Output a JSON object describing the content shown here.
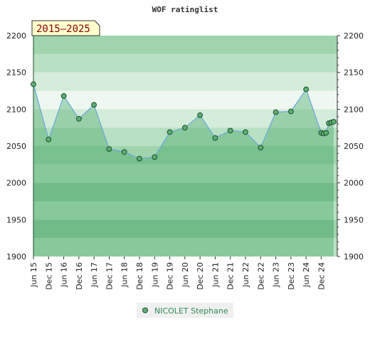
{
  "chart_data": {
    "type": "area",
    "title": "WOF ratinglist",
    "period_label": "2015–2025",
    "ylim": [
      1900,
      2200
    ],
    "yticks": [
      1900,
      1950,
      2000,
      2050,
      2100,
      2150,
      2200
    ],
    "xlim": [
      2015.42,
      2025.45
    ],
    "xticks": [
      {
        "label": "Jun 15",
        "x": 2015.42
      },
      {
        "label": "Dec 15",
        "x": 2015.92
      },
      {
        "label": "Jun 16",
        "x": 2016.42
      },
      {
        "label": "Dec 16",
        "x": 2016.92
      },
      {
        "label": "Jun 17",
        "x": 2017.42
      },
      {
        "label": "Dec 17",
        "x": 2017.92
      },
      {
        "label": "Jun 18",
        "x": 2018.42
      },
      {
        "label": "Dec 18",
        "x": 2018.92
      },
      {
        "label": "Jun 19",
        "x": 2019.42
      },
      {
        "label": "Dec 19",
        "x": 2019.92
      },
      {
        "label": "Jun 20",
        "x": 2020.42
      },
      {
        "label": "Dec 20",
        "x": 2020.92
      },
      {
        "label": "Jun 21",
        "x": 2021.42
      },
      {
        "label": "Dec 21",
        "x": 2021.92
      },
      {
        "label": "Jun 22",
        "x": 2022.42
      },
      {
        "label": "Dec 22",
        "x": 2022.92
      },
      {
        "label": "Jun 23",
        "x": 2023.42
      },
      {
        "label": "Dec 23",
        "x": 2023.92
      },
      {
        "label": "Jun 24",
        "x": 2024.42
      },
      {
        "label": "Dec 24",
        "x": 2024.92
      }
    ],
    "series": [
      {
        "name": "NICOLET Stephane",
        "points": [
          {
            "x": 2015.42,
            "y": 2134
          },
          {
            "x": 2015.92,
            "y": 2059
          },
          {
            "x": 2016.42,
            "y": 2118
          },
          {
            "x": 2016.92,
            "y": 2087
          },
          {
            "x": 2017.42,
            "y": 2106
          },
          {
            "x": 2017.92,
            "y": 2046
          },
          {
            "x": 2018.42,
            "y": 2042
          },
          {
            "x": 2018.92,
            "y": 2033
          },
          {
            "x": 2019.42,
            "y": 2035
          },
          {
            "x": 2019.92,
            "y": 2069
          },
          {
            "x": 2020.42,
            "y": 2075
          },
          {
            "x": 2020.92,
            "y": 2092
          },
          {
            "x": 2021.42,
            "y": 2061
          },
          {
            "x": 2021.92,
            "y": 2071
          },
          {
            "x": 2022.42,
            "y": 2069
          },
          {
            "x": 2022.92,
            "y": 2048
          },
          {
            "x": 2023.42,
            "y": 2096
          },
          {
            "x": 2023.92,
            "y": 2097
          },
          {
            "x": 2024.42,
            "y": 2127
          },
          {
            "x": 2024.92,
            "y": 2068
          },
          {
            "x": 2025.0,
            "y": 2067
          },
          {
            "x": 2025.08,
            "y": 2068
          },
          {
            "x": 2025.17,
            "y": 2081
          },
          {
            "x": 2025.25,
            "y": 2082
          },
          {
            "x": 2025.33,
            "y": 2083
          }
        ]
      }
    ],
    "colors": {
      "area_fill": "#3aa35c",
      "line": "#6fa8dc",
      "marker": "#5cb072",
      "marker_stroke": "#1a4a2a",
      "legend_text": "#2e8b57",
      "label_box": "#ffffcc",
      "label_text": "#8b0000"
    }
  }
}
